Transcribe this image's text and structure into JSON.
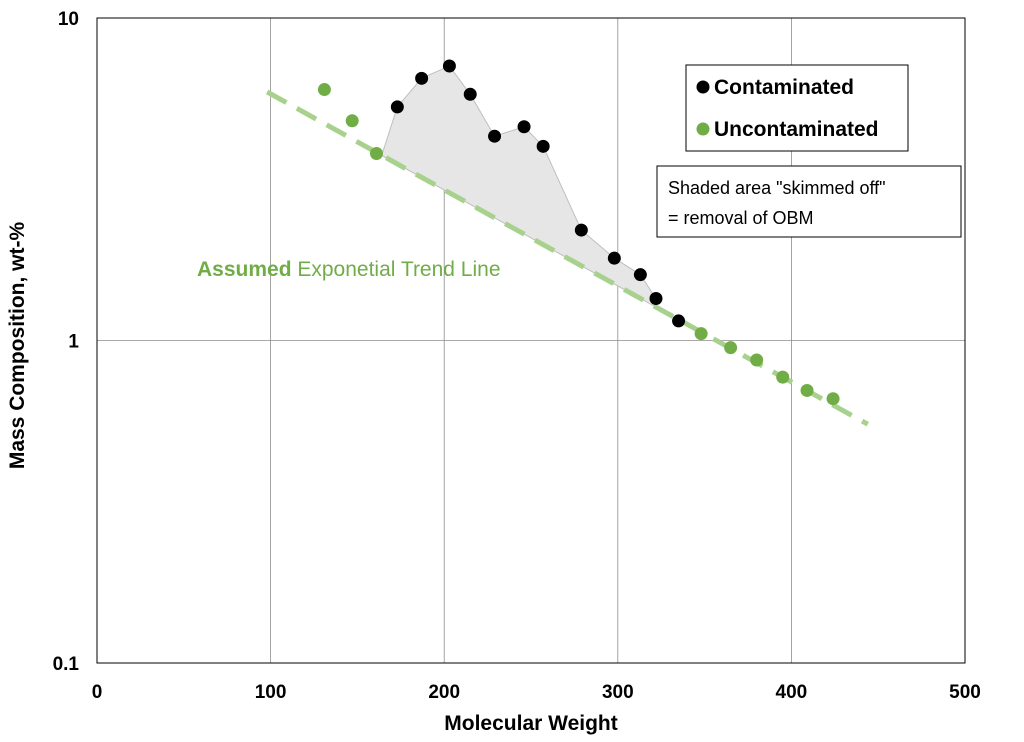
{
  "colors": {
    "contaminated": "#000000",
    "uncontaminated": "#70ad47",
    "trend": "#a9d18e",
    "shade_fill": "#e6e6e6",
    "shade_stroke": "#bfbfbf",
    "grid": "#8c8c8c",
    "annotation_green": "#70ad47"
  },
  "chart_data": {
    "type": "scatter",
    "title": "",
    "xlabel": "Molecular Weight",
    "ylabel": "Mass Composition, wt-%",
    "xlim": [
      0,
      500
    ],
    "ylim": [
      0.1,
      10
    ],
    "yscale": "log",
    "grid": true,
    "x_ticks": [
      "0",
      "100",
      "200",
      "300",
      "400",
      "500"
    ],
    "y_ticks": [
      "0.1",
      "1",
      "10"
    ],
    "legend_position": "top-right",
    "series": [
      {
        "name": "Contaminated",
        "x": [
          173,
          187,
          203,
          215,
          229,
          246,
          257,
          279,
          298,
          313,
          322,
          335
        ],
        "y": [
          5.3,
          6.5,
          7.1,
          5.8,
          4.3,
          4.6,
          4.0,
          2.2,
          1.8,
          1.6,
          1.35,
          1.15
        ]
      },
      {
        "name": "Uncontaminated",
        "x": [
          131,
          147,
          161,
          348,
          365,
          380,
          395,
          409,
          424
        ],
        "y": [
          6.0,
          4.8,
          3.8,
          1.05,
          0.95,
          0.87,
          0.77,
          0.7,
          0.66
        ]
      }
    ],
    "trend_line": {
      "style": "dashed",
      "x": [
        98,
        444
      ],
      "y": [
        5.9,
        0.55
      ]
    },
    "shaded_area": {
      "x": [
        164,
        173,
        187,
        203,
        215,
        229,
        246,
        257,
        279,
        298,
        313,
        322
      ],
      "y": [
        3.75,
        5.3,
        6.5,
        7.1,
        5.8,
        4.3,
        4.6,
        4.0,
        2.2,
        1.8,
        1.6,
        1.35
      ]
    },
    "annotations": {
      "trend_label_bold": "Assumed",
      "trend_label_rest": " Exponetial Trend Line",
      "note_line1": "Shaded area \"skimmed off\"",
      "note_line2": "= removal of OBM"
    }
  }
}
